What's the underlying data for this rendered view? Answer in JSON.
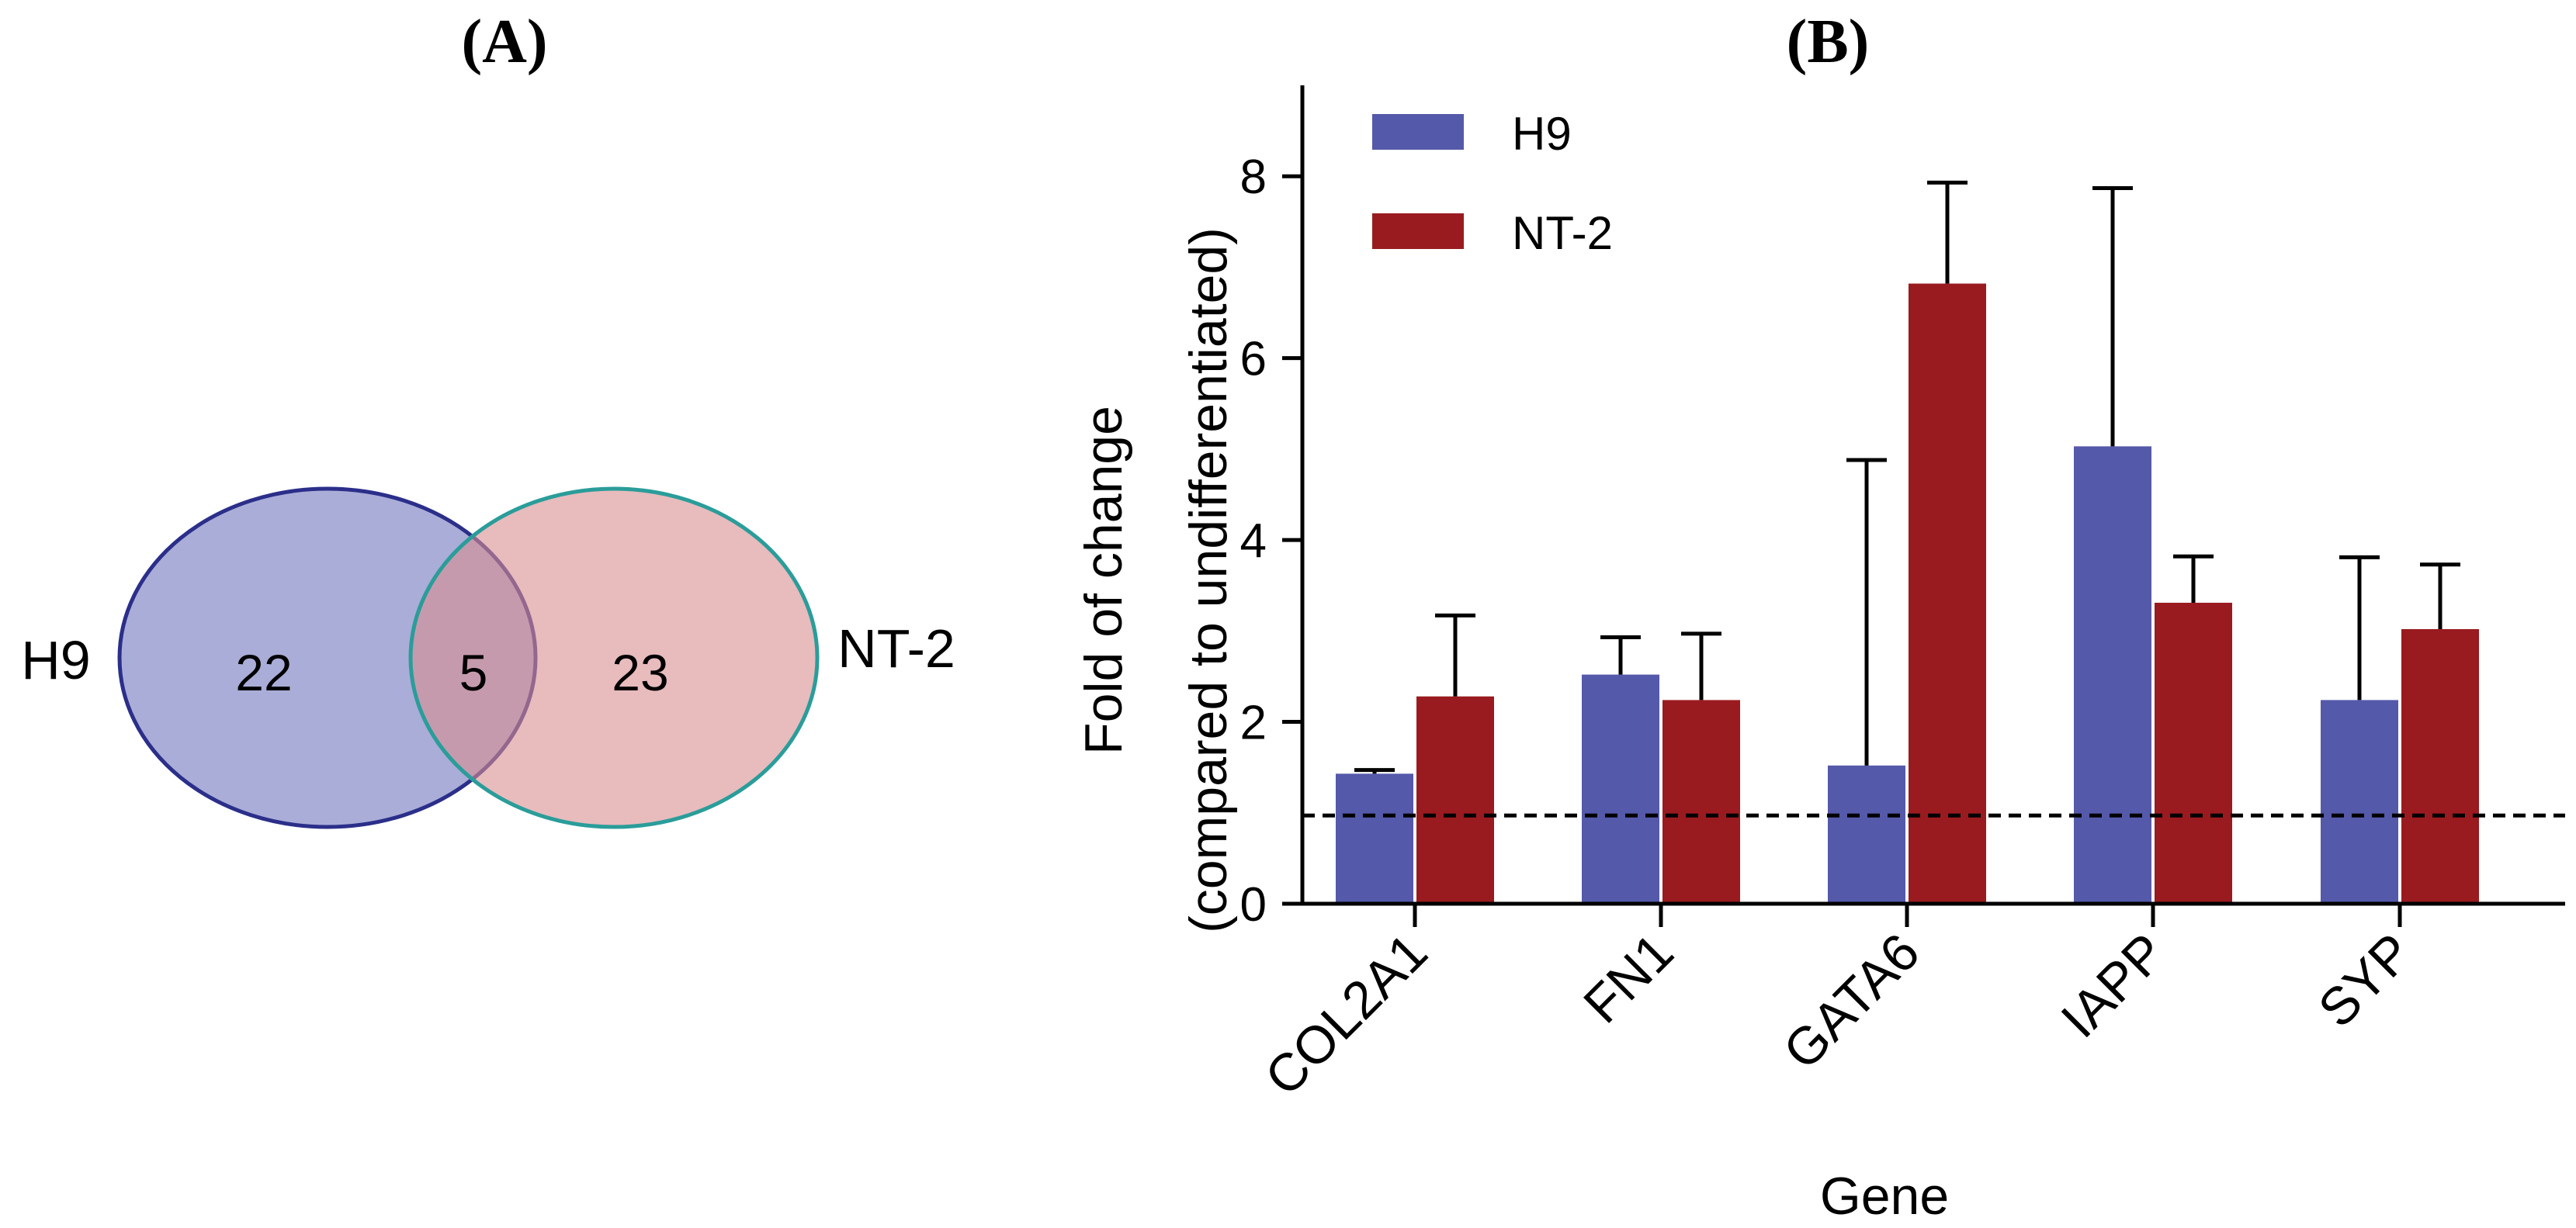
{
  "panel_a": {
    "label": "(A)",
    "left_set": {
      "name": "H9",
      "only": "22",
      "fill": "#9b9fd0",
      "stroke": "#2b2f8a"
    },
    "right_set": {
      "name": "NT-2",
      "only": "23",
      "fill": "#d98e91",
      "stroke": "#2a9d9a"
    },
    "overlap": "5"
  },
  "panel_b": {
    "label": "(B)"
  },
  "chart_data": {
    "type": "bar",
    "title": "",
    "xlabel": "Gene",
    "ylabel": "Fold of change",
    "ylabel_line2": "(compared to undifferentiated)",
    "ylim": [
      0,
      9
    ],
    "yticks": [
      0,
      2,
      4,
      6,
      8
    ],
    "categories": [
      "COL2A1",
      "FN1",
      "GATA6",
      "IAPP",
      "SYP"
    ],
    "series": [
      {
        "name": "H9",
        "color": "#5459a9",
        "values": [
          1.43,
          2.52,
          1.52,
          5.03,
          2.24
        ],
        "error_upper": [
          1.47,
          2.93,
          4.88,
          7.87,
          3.81
        ]
      },
      {
        "name": "NT-2",
        "color": "#991b1f",
        "values": [
          2.28,
          2.24,
          6.82,
          3.31,
          3.02
        ],
        "error_upper": [
          3.17,
          2.97,
          7.93,
          3.82,
          3.73
        ]
      }
    ],
    "reference_line": {
      "value": 0.97,
      "style": "dashed"
    },
    "legend_position": "top-left"
  }
}
